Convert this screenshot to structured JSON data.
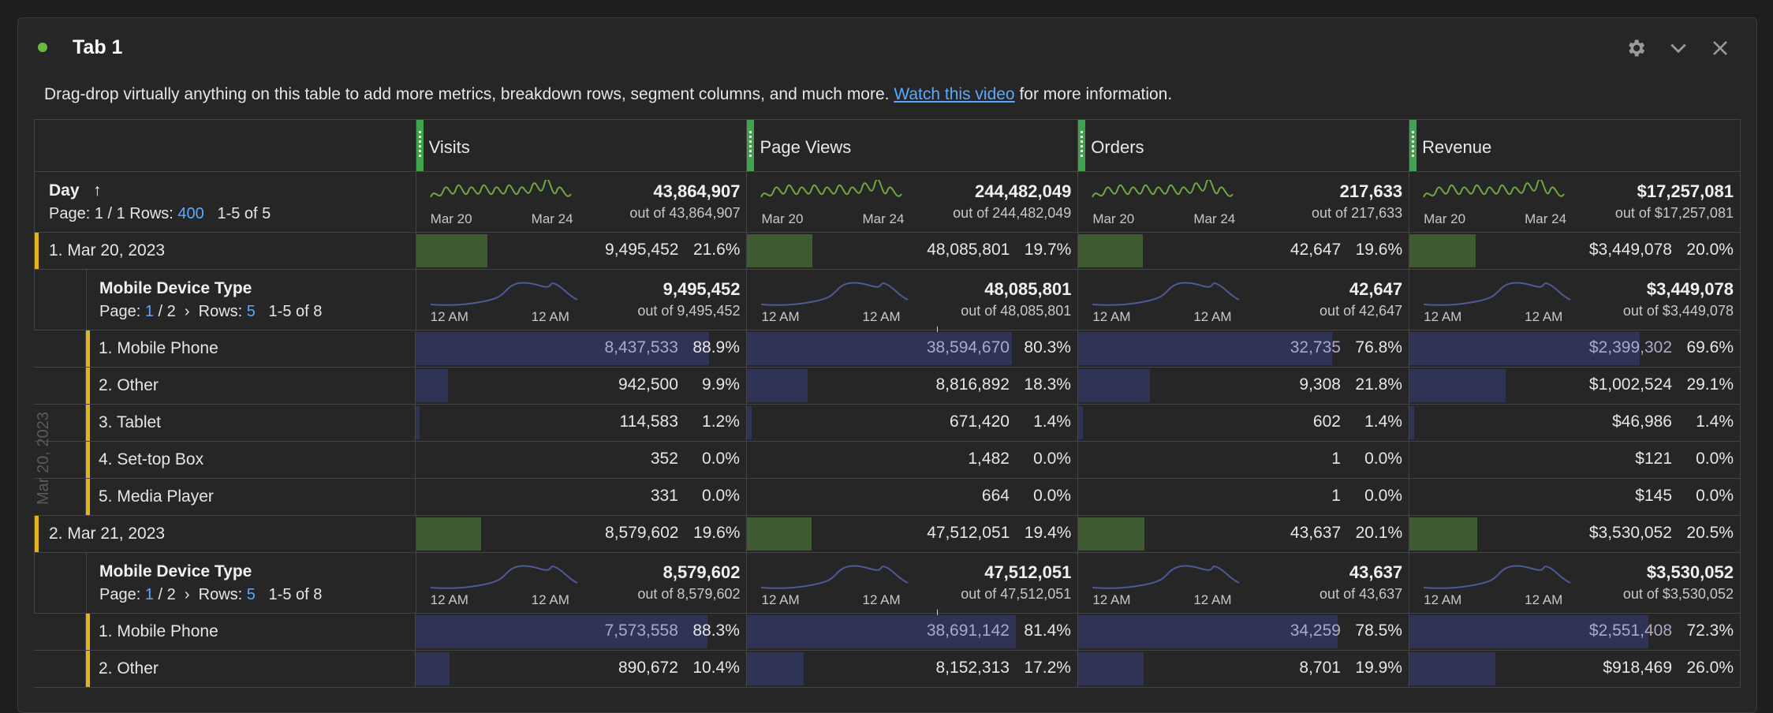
{
  "window": {
    "tab_title": "Tab 1",
    "status_color": "#6fb83f",
    "icons": [
      "gear-icon",
      "chevron-down-icon",
      "close-icon"
    ]
  },
  "intro": {
    "before": "Drag-drop virtually anything on this table to add more metrics, breakdown rows, segment columns, and much more. ",
    "link": "Watch this video",
    "after": " for more information."
  },
  "columns": [
    "Visits",
    "Page Views",
    "Orders",
    "Revenue"
  ],
  "summary": {
    "dimension": "Day",
    "sort_icon": "arrow-up-icon",
    "page_prefix": "Page: 1 / 1  Rows: ",
    "rows": "400",
    "range": "1-5 of 5",
    "ticks": [
      "Mar 20",
      "Mar 24"
    ],
    "metrics": [
      {
        "total": "43,864,907",
        "out": "out of 43,864,907"
      },
      {
        "total": "244,482,049",
        "out": "out of 244,482,049"
      },
      {
        "total": "217,633",
        "out": "out of 217,633"
      },
      {
        "total": "$17,257,081",
        "out": "out of $17,257,081"
      }
    ]
  },
  "days": [
    {
      "label": "1.  Mar 20, 2023",
      "values": [
        {
          "num": "9,495,452",
          "pct": "21.6%",
          "fill": 0.216
        },
        {
          "num": "48,085,801",
          "pct": "19.7%",
          "fill": 0.197
        },
        {
          "num": "42,647",
          "pct": "19.6%",
          "fill": 0.196
        },
        {
          "num": "$3,449,078",
          "pct": "20.0%",
          "fill": 0.2
        }
      ],
      "breakdown": {
        "title": "Mobile Device Type",
        "page_label": "Page: ",
        "page": "1",
        "page_rest": " / 2",
        "rows_label": "Rows: ",
        "rows": "5",
        "range": "1-5 of 8",
        "ticks": [
          "12 AM",
          "12 AM"
        ],
        "sort_icon": "arrow-down-icon",
        "metrics": [
          {
            "total": "9,495,452",
            "out": "out of 9,495,452"
          },
          {
            "total": "48,085,801",
            "out": "out of 48,085,801"
          },
          {
            "total": "42,647",
            "out": "out of 42,647"
          },
          {
            "total": "$3,449,078",
            "out": "out of $3,449,078"
          }
        ],
        "rows_data": [
          {
            "label": "1.  Mobile Phone",
            "values": [
              {
                "num": "8,437,533",
                "pct": "88.9%",
                "fill": 0.889
              },
              {
                "num": "38,594,670",
                "pct": "80.3%",
                "fill": 0.803
              },
              {
                "num": "32,735",
                "pct": "76.8%",
                "fill": 0.768
              },
              {
                "num": "$2,399,302",
                "pct": "69.6%",
                "fill": 0.696
              }
            ]
          },
          {
            "label": "2.  Other",
            "values": [
              {
                "num": "942,500",
                "pct": "9.9%",
                "fill": 0.099
              },
              {
                "num": "8,816,892",
                "pct": "18.3%",
                "fill": 0.183
              },
              {
                "num": "9,308",
                "pct": "21.8%",
                "fill": 0.218
              },
              {
                "num": "$1,002,524",
                "pct": "29.1%",
                "fill": 0.291
              }
            ]
          },
          {
            "label": "3.  Tablet",
            "values": [
              {
                "num": "114,583",
                "pct": "1.2%",
                "fill": 0.012
              },
              {
                "num": "671,420",
                "pct": "1.4%",
                "fill": 0.014
              },
              {
                "num": "602",
                "pct": "1.4%",
                "fill": 0.014
              },
              {
                "num": "$46,986",
                "pct": "1.4%",
                "fill": 0.014
              }
            ]
          },
          {
            "label": "4.  Set-top Box",
            "values": [
              {
                "num": "352",
                "pct": "0.0%",
                "fill": 0
              },
              {
                "num": "1,482",
                "pct": "0.0%",
                "fill": 0
              },
              {
                "num": "1",
                "pct": "0.0%",
                "fill": 0
              },
              {
                "num": "$121",
                "pct": "0.0%",
                "fill": 0
              }
            ]
          },
          {
            "label": "5.  Media Player",
            "values": [
              {
                "num": "331",
                "pct": "0.0%",
                "fill": 0
              },
              {
                "num": "664",
                "pct": "0.0%",
                "fill": 0
              },
              {
                "num": "1",
                "pct": "0.0%",
                "fill": 0
              },
              {
                "num": "$145",
                "pct": "0.0%",
                "fill": 0
              }
            ]
          }
        ]
      },
      "vertical_label": "Mar 20, 2023"
    },
    {
      "label": "2.  Mar 21, 2023",
      "values": [
        {
          "num": "8,579,602",
          "pct": "19.6%",
          "fill": 0.196
        },
        {
          "num": "47,512,051",
          "pct": "19.4%",
          "fill": 0.194
        },
        {
          "num": "43,637",
          "pct": "20.1%",
          "fill": 0.201
        },
        {
          "num": "$3,530,052",
          "pct": "20.5%",
          "fill": 0.205
        }
      ],
      "breakdown": {
        "title": "Mobile Device Type",
        "page_label": "Page: ",
        "page": "1",
        "page_rest": " / 2",
        "rows_label": "Rows: ",
        "rows": "5",
        "range": "1-5 of 8",
        "ticks": [
          "12 AM",
          "12 AM"
        ],
        "sort_icon": "arrow-down-icon",
        "metrics": [
          {
            "total": "8,579,602",
            "out": "out of 8,579,602"
          },
          {
            "total": "47,512,051",
            "out": "out of 47,512,051"
          },
          {
            "total": "43,637",
            "out": "out of 43,637"
          },
          {
            "total": "$3,530,052",
            "out": "out of $3,530,052"
          }
        ],
        "rows_data": [
          {
            "label": "1.  Mobile Phone",
            "values": [
              {
                "num": "7,573,558",
                "pct": "88.3%",
                "fill": 0.883
              },
              {
                "num": "38,691,142",
                "pct": "81.4%",
                "fill": 0.814
              },
              {
                "num": "34,259",
                "pct": "78.5%",
                "fill": 0.785
              },
              {
                "num": "$2,551,408",
                "pct": "72.3%",
                "fill": 0.723
              }
            ]
          },
          {
            "label": "2.  Other",
            "values": [
              {
                "num": "890,672",
                "pct": "10.4%",
                "fill": 0.104
              },
              {
                "num": "8,152,313",
                "pct": "17.2%",
                "fill": 0.172
              },
              {
                "num": "8,701",
                "pct": "19.9%",
                "fill": 0.199
              },
              {
                "num": "$918,469",
                "pct": "26.0%",
                "fill": 0.26
              }
            ]
          }
        ]
      }
    }
  ],
  "colors": {
    "accent_green": "#3fa34d",
    "bar_green": "#3d5a30",
    "bar_blue": "#2f3456",
    "row_marker": "#e2b51e",
    "link": "#5aa9ff",
    "sparkline_day": "#6fa83f",
    "sparkline_hour": "#4d5a96"
  }
}
